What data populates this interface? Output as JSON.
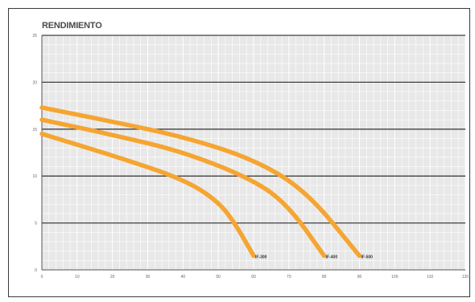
{
  "chart_data": {
    "type": "line",
    "title": "RENDIMIENTO",
    "xlabel": "",
    "ylabel": "",
    "xlim": [
      0,
      120
    ],
    "ylim": [
      0,
      25
    ],
    "x_ticks": [
      0,
      10,
      20,
      30,
      40,
      50,
      60,
      70,
      80,
      90,
      100,
      110,
      120
    ],
    "y_ticks": [
      0,
      5,
      10,
      15,
      20,
      25
    ],
    "grid": true,
    "series_color": "#f5a531",
    "series": [
      {
        "label": "IF-300",
        "points": [
          [
            0,
            14.5
          ],
          [
            20,
            12.2
          ],
          [
            40,
            9.7
          ],
          [
            50,
            7.3
          ],
          [
            55,
            4.8
          ],
          [
            60,
            1.5
          ]
        ]
      },
      {
        "label": "IF-400",
        "points": [
          [
            0,
            16
          ],
          [
            20,
            14.4
          ],
          [
            40,
            12.6
          ],
          [
            60,
            9.6
          ],
          [
            70,
            6.8
          ],
          [
            80,
            1.5
          ]
        ]
      },
      {
        "label": "IF-500",
        "points": [
          [
            0,
            17.3
          ],
          [
            20,
            15.8
          ],
          [
            40,
            14.2
          ],
          [
            60,
            11.8
          ],
          [
            75,
            8.4
          ],
          [
            90,
            1.5
          ]
        ]
      }
    ]
  }
}
